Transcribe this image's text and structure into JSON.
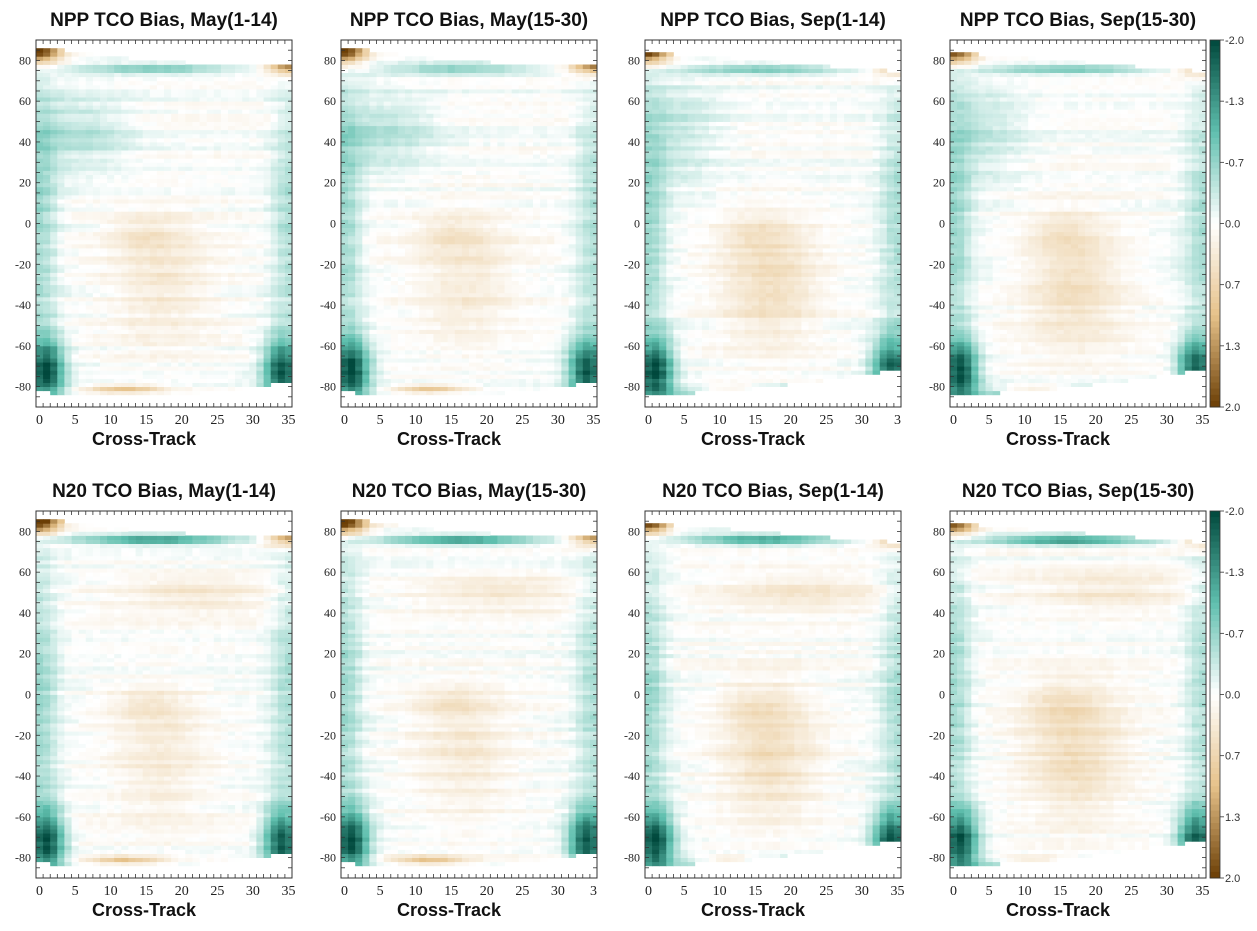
{
  "colors": {
    "negative_max": "#00483c",
    "negative_mid": "#5fbfae",
    "neutral": "#ffffff",
    "positive_mid": "#e6c28a",
    "positive_max": "#6b3e05"
  },
  "chart_data": [
    {
      "type": "heatmap",
      "title": "NPP TCO Bias, May(1-14)",
      "xlabel": "Cross-Track",
      "x_ticks": [
        "0",
        "5",
        "10",
        "15",
        "20",
        "25",
        "30",
        "35"
      ],
      "y_ticks": [
        "80",
        "60",
        "40",
        "20",
        "0",
        "-20",
        "-40",
        "-60",
        "-80"
      ],
      "xlim": [
        0,
        35
      ],
      "ylim": [
        -90,
        90
      ],
      "zlim": [
        2.0,
        -2.0
      ]
    },
    {
      "type": "heatmap",
      "title": "NPP TCO Bias, May(15-30)",
      "xlabel": "Cross-Track",
      "x_ticks": [
        "0",
        "5",
        "10",
        "15",
        "20",
        "25",
        "30",
        "35"
      ],
      "y_ticks": [
        "80",
        "60",
        "40",
        "20",
        "0",
        "-20",
        "-40",
        "-60",
        "-80"
      ],
      "xlim": [
        0,
        35
      ],
      "ylim": [
        -90,
        90
      ],
      "zlim": [
        2.0,
        -2.0
      ]
    },
    {
      "type": "heatmap",
      "title": "NPP TCO Bias, Sep(1-14)",
      "xlabel": "Cross-Track",
      "x_ticks": [
        "0",
        "5",
        "10",
        "15",
        "20",
        "25",
        "30",
        "3"
      ],
      "y_ticks": [
        "80",
        "60",
        "40",
        "20",
        "0",
        "-20",
        "-40",
        "-60",
        "-80"
      ],
      "xlim": [
        0,
        35
      ],
      "ylim": [
        -90,
        90
      ],
      "zlim": [
        2.0,
        -2.0
      ]
    },
    {
      "type": "heatmap",
      "title": "NPP TCO Bias, Sep(15-30)",
      "xlabel": "Cross-Track",
      "x_ticks": [
        "0",
        "5",
        "10",
        "15",
        "20",
        "25",
        "30",
        "35"
      ],
      "y_ticks": [
        "80",
        "60",
        "40",
        "20",
        "0",
        "-20",
        "-40",
        "-60",
        "-80"
      ],
      "xlim": [
        0,
        35
      ],
      "ylim": [
        -90,
        90
      ],
      "zlim": [
        2.0,
        -2.0
      ],
      "colorbar_ticks": [
        "-2.0",
        "-1.3",
        "-0.7",
        "0.0",
        "0.7",
        "1.3",
        "2.0"
      ]
    },
    {
      "type": "heatmap",
      "title": "N20 TCO Bias, May(1-14)",
      "xlabel": "Cross-Track",
      "x_ticks": [
        "0",
        "5",
        "10",
        "15",
        "20",
        "25",
        "30",
        "35"
      ],
      "y_ticks": [
        "80",
        "60",
        "40",
        "20",
        "0",
        "-20",
        "-40",
        "-60",
        "-80"
      ],
      "xlim": [
        0,
        35
      ],
      "ylim": [
        -90,
        90
      ],
      "zlim": [
        2.0,
        -2.0
      ]
    },
    {
      "type": "heatmap",
      "title": "N20 TCO Bias, May(15-30)",
      "xlabel": "Cross-Track",
      "x_ticks": [
        "0",
        "5",
        "10",
        "15",
        "20",
        "25",
        "30",
        "3"
      ],
      "y_ticks": [
        "80",
        "60",
        "40",
        "20",
        "0",
        "-20",
        "-40",
        "-60",
        "-80"
      ],
      "xlim": [
        0,
        35
      ],
      "ylim": [
        -90,
        90
      ],
      "zlim": [
        2.0,
        -2.0
      ]
    },
    {
      "type": "heatmap",
      "title": "N20 TCO Bias, Sep(1-14)",
      "xlabel": "Cross-Track",
      "x_ticks": [
        "0",
        "5",
        "10",
        "15",
        "20",
        "25",
        "30",
        "35"
      ],
      "y_ticks": [
        "80",
        "60",
        "40",
        "20",
        "0",
        "-20",
        "-40",
        "-60",
        "-80"
      ],
      "xlim": [
        0,
        35
      ],
      "ylim": [
        -90,
        90
      ],
      "zlim": [
        2.0,
        -2.0
      ]
    },
    {
      "type": "heatmap",
      "title": "N20 TCO Bias, Sep(15-30)",
      "xlabel": "Cross-Track",
      "x_ticks": [
        "0",
        "5",
        "10",
        "15",
        "20",
        "25",
        "30",
        "35"
      ],
      "y_ticks": [
        "80",
        "60",
        "40",
        "20",
        "0",
        "-20",
        "-40",
        "-60",
        "-80"
      ],
      "xlim": [
        0,
        35
      ],
      "ylim": [
        -90,
        90
      ],
      "zlim": [
        2.0,
        -2.0
      ],
      "colorbar_ticks": [
        "-2.0",
        "-1.3",
        "-0.7",
        "0.0",
        "0.7",
        "1.3",
        "2.0"
      ]
    }
  ]
}
